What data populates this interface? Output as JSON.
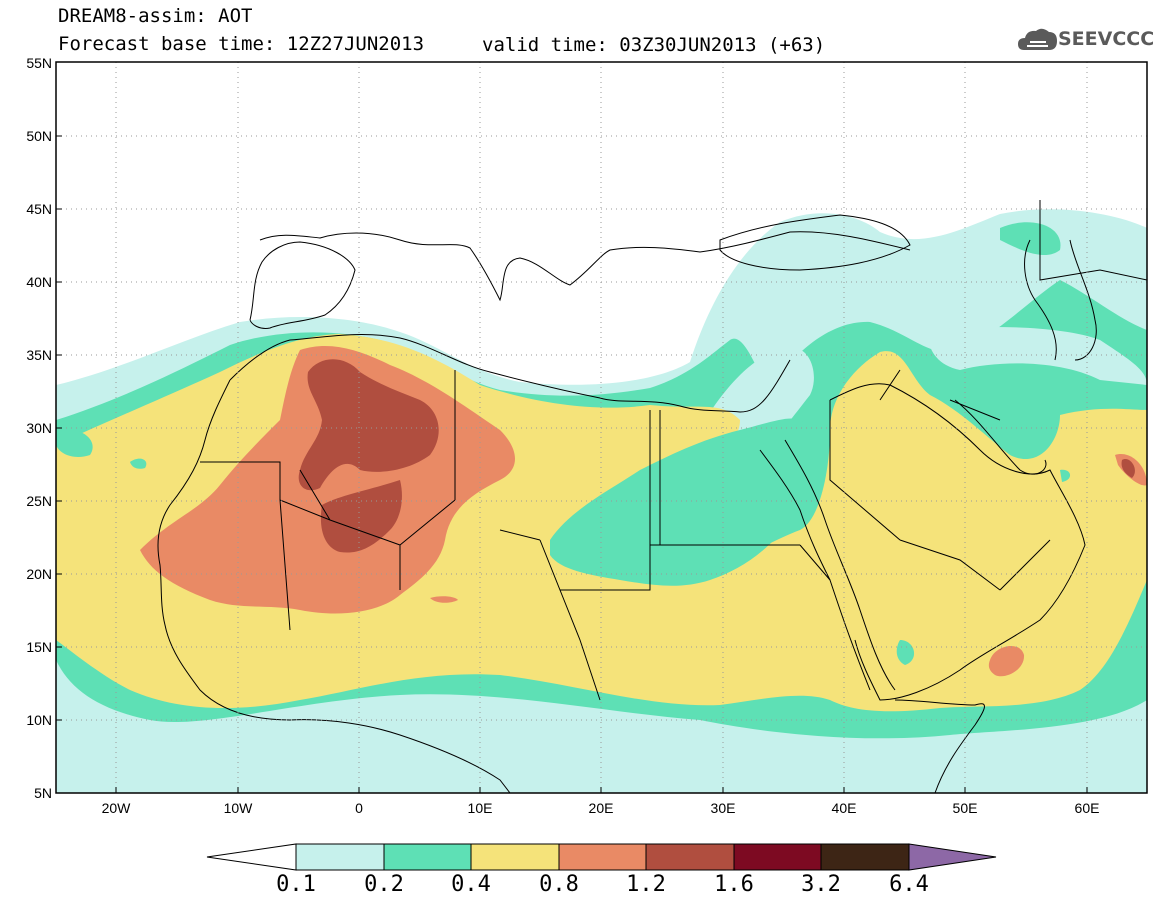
{
  "header": {
    "title": "DREAM8-assim: AOT",
    "base_time": "Forecast base time: 12Z27JUN2013",
    "valid_time": "valid time: 03Z30JUN2013 (+63)",
    "logo_text": "SEEVCCC"
  },
  "map": {
    "lat_labels": [
      "55N",
      "50N",
      "45N",
      "40N",
      "35N",
      "30N",
      "25N",
      "20N",
      "15N",
      "10N",
      "5N"
    ],
    "lon_labels": [
      "20W",
      "10W",
      "0",
      "10E",
      "20E",
      "30E",
      "40E",
      "50E",
      "60E"
    ],
    "extent": {
      "lon_min": -25,
      "lon_max": 65,
      "lat_min": 5,
      "lat_max": 55
    },
    "grid": true
  },
  "colorbar": {
    "labels": [
      "0.1",
      "0.2",
      "0.4",
      "0.8",
      "1.2",
      "1.6",
      "3.2",
      "6.4"
    ],
    "colors": [
      "#ffffff",
      "#c6f1ec",
      "#5ee0b5",
      "#f5e37a",
      "#e98a65",
      "#b04e3f",
      "#7d0a22",
      "#3d2515",
      "#8d68a6"
    ]
  }
}
